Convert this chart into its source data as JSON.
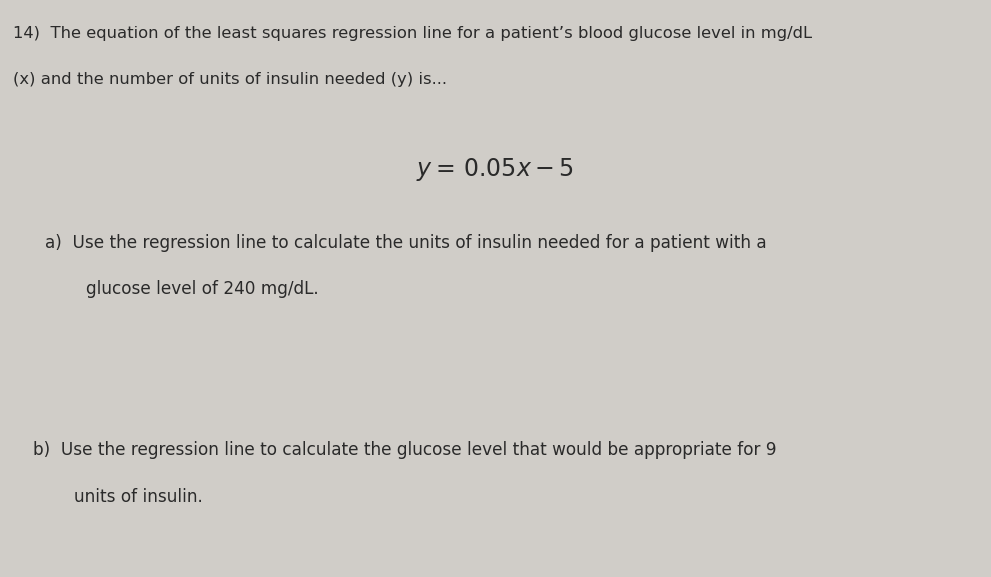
{
  "background_color": "#d0cdc8",
  "line1": "14)  The equation of the least squares regression line for a patient’s blood glucose level in mg/dL",
  "line2": "(x) and the number of units of insulin needed (y) is...",
  "equation": "$y =\\,  0.05x - 5$",
  "part_a_label": "a)",
  "part_a_line1": "Use the regression line to calculate the units of insulin needed for a patient with a",
  "part_a_line2": "glucose level of 240 mg/dL.",
  "part_b_label": "b)",
  "part_b_line1": "Use the regression line to calculate the glucose level that would be appropriate for 9",
  "part_b_line2": "units of insulin.",
  "text_color": "#2a2a2a",
  "font_size_header": 11.8,
  "font_size_body": 12.2,
  "font_size_equation": 17
}
